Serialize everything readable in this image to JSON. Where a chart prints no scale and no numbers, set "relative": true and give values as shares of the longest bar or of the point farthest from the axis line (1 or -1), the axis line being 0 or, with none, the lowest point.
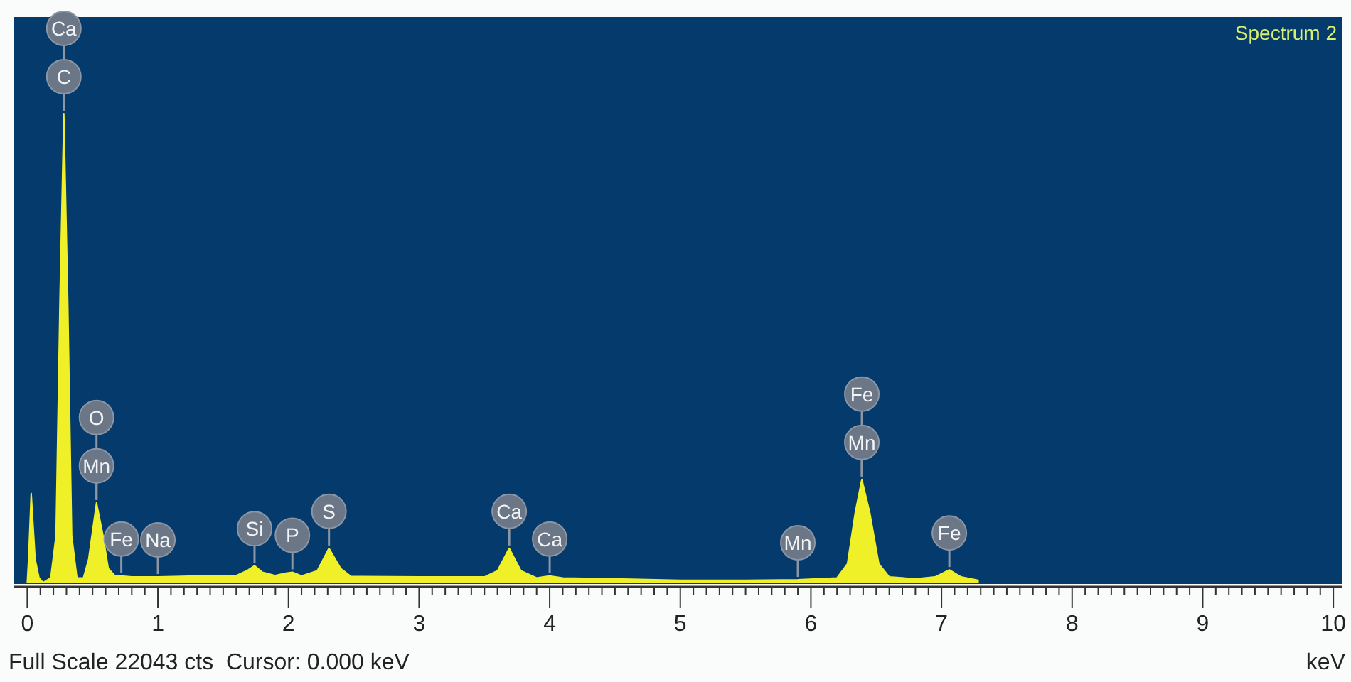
{
  "chart_data": {
    "type": "area",
    "title": "Spectrum 2",
    "xlabel": "keV",
    "relative": true,
    "xlim": [
      -0.1,
      10.07
    ],
    "xticks": [
      0,
      {
        "value": 0.1,
        "label": null
      },
      {
        "value": 0.2,
        "label": null
      },
      {
        "value": 0.3,
        "label": null
      },
      {
        "value": 0.4,
        "label": null
      },
      {
        "value": 0.5,
        "label": null
      },
      {
        "value": 0.6,
        "label": null
      },
      {
        "value": 0.7,
        "label": null
      },
      {
        "value": 0.8,
        "label": null
      },
      {
        "value": 0.9,
        "label": null
      },
      1,
      {
        "value": 1.1,
        "label": null
      },
      {
        "value": 1.2,
        "label": null
      },
      {
        "value": 1.3,
        "label": null
      },
      {
        "value": 1.4,
        "label": null
      },
      {
        "value": 1.5,
        "label": null
      },
      {
        "value": 1.6,
        "label": null
      },
      {
        "value": 1.7,
        "label": null
      },
      {
        "value": 1.8,
        "label": null
      },
      {
        "value": 1.9,
        "label": null
      },
      2,
      {
        "value": 2.1,
        "label": null
      },
      {
        "value": 2.2,
        "label": null
      },
      {
        "value": 2.3,
        "label": null
      },
      {
        "value": 2.4,
        "label": null
      },
      {
        "value": 2.5,
        "label": null
      },
      {
        "value": 2.6,
        "label": null
      },
      {
        "value": 2.7,
        "label": null
      },
      {
        "value": 2.8,
        "label": null
      },
      {
        "value": 2.9,
        "label": null
      },
      3,
      {
        "value": 3.1,
        "label": null
      },
      {
        "value": 3.2,
        "label": null
      },
      {
        "value": 3.3,
        "label": null
      },
      {
        "value": 3.4,
        "label": null
      },
      {
        "value": 3.5,
        "label": null
      },
      {
        "value": 3.6,
        "label": null
      },
      {
        "value": 3.7,
        "label": null
      },
      {
        "value": 3.8,
        "label": null
      },
      {
        "value": 3.9,
        "label": null
      },
      4,
      {
        "value": 4.1,
        "label": null
      },
      {
        "value": 4.2,
        "label": null
      },
      {
        "value": 4.3,
        "label": null
      },
      {
        "value": 4.4,
        "label": null
      },
      {
        "value": 4.5,
        "label": null
      },
      {
        "value": 4.6,
        "label": null
      },
      {
        "value": 4.7,
        "label": null
      },
      {
        "value": 4.8,
        "label": null
      },
      {
        "value": 4.9,
        "label": null
      },
      5,
      {
        "value": 5.1,
        "label": null
      },
      {
        "value": 5.2,
        "label": null
      },
      {
        "value": 5.3,
        "label": null
      },
      {
        "value": 5.4,
        "label": null
      },
      {
        "value": 5.5,
        "label": null
      },
      {
        "value": 5.6,
        "label": null
      },
      {
        "value": 5.7,
        "label": null
      },
      {
        "value": 5.8,
        "label": null
      },
      {
        "value": 5.9,
        "label": null
      },
      6,
      {
        "value": 6.1,
        "label": null
      },
      {
        "value": 6.2,
        "label": null
      },
      {
        "value": 6.3,
        "label": null
      },
      {
        "value": 6.4,
        "label": null
      },
      {
        "value": 6.5,
        "label": null
      },
      {
        "value": 6.6,
        "label": null
      },
      {
        "value": 6.7,
        "label": null
      },
      {
        "value": 6.8,
        "label": null
      },
      {
        "value": 6.9,
        "label": null
      },
      7,
      {
        "value": 7.1,
        "label": null
      },
      {
        "value": 7.2,
        "label": null
      },
      {
        "value": 7.3,
        "label": null
      },
      {
        "value": 7.4,
        "label": null
      },
      {
        "value": 7.5,
        "label": null
      },
      {
        "value": 7.6,
        "label": null
      },
      {
        "value": 7.7,
        "label": null
      },
      {
        "value": 7.8,
        "label": null
      },
      {
        "value": 7.9,
        "label": null
      },
      8,
      {
        "value": 8.1,
        "label": null
      },
      {
        "value": 8.2,
        "label": null
      },
      {
        "value": 8.3,
        "label": null
      },
      {
        "value": 8.4,
        "label": null
      },
      {
        "value": 8.5,
        "label": null
      },
      {
        "value": 8.6,
        "label": null
      },
      {
        "value": 8.7,
        "label": null
      },
      {
        "value": 8.8,
        "label": null
      },
      {
        "value": 8.9,
        "label": null
      },
      9,
      {
        "value": 9.1,
        "label": null
      },
      {
        "value": 9.2,
        "label": null
      },
      {
        "value": 9.3,
        "label": null
      },
      {
        "value": 9.4,
        "label": null
      },
      {
        "value": 9.5,
        "label": null
      },
      {
        "value": 9.6,
        "label": null
      },
      {
        "value": 9.7,
        "label": null
      },
      {
        "value": 9.8,
        "label": null
      },
      {
        "value": 9.9,
        "label": null
      },
      10
    ],
    "series": [
      {
        "color": "#f0f028",
        "x": [
          0,
          0.01,
          0.03,
          0.06,
          0.09,
          0.12,
          0.18,
          0.22,
          0.25,
          0.28,
          0.31,
          0.34,
          0.38,
          0.43,
          0.47,
          0.53,
          0.58,
          0.62,
          0.67,
          0.8,
          1.0,
          1.3,
          1.6,
          1.68,
          1.74,
          1.8,
          1.9,
          1.98,
          2.03,
          2.1,
          2.22,
          2.31,
          2.4,
          2.48,
          3.0,
          3.5,
          3.6,
          3.69,
          3.78,
          3.9,
          4.0,
          4.1,
          4.5,
          5.0,
          5.5,
          5.9,
          6.2,
          6.28,
          6.34,
          6.39,
          6.45,
          6.52,
          6.6,
          6.8,
          6.95,
          7.06,
          7.15,
          7.28
        ],
        "values": [
          0,
          0.05,
          0.19,
          0.05,
          0.01,
          0,
          0.01,
          0.1,
          0.6,
          1,
          0.6,
          0.1,
          0.01,
          0.01,
          0.05,
          0.17,
          0.1,
          0.03,
          0.015,
          0.012,
          0.012,
          0.014,
          0.015,
          0.025,
          0.036,
          0.022,
          0.015,
          0.02,
          0.022,
          0.014,
          0.025,
          0.073,
          0.03,
          0.013,
          0.012,
          0.012,
          0.025,
          0.073,
          0.025,
          0.01,
          0.014,
          0.01,
          0.008,
          0.005,
          0.005,
          0.006,
          0.01,
          0.04,
          0.15,
          0.22,
          0.15,
          0.04,
          0.012,
          0.008,
          0.012,
          0.027,
          0.012,
          0.005
        ]
      }
    ],
    "annotations": [
      {
        "text": "Ca",
        "x": 0.28,
        "y": 1
      },
      {
        "text": "C",
        "x": 0.28,
        "y": 1
      },
      {
        "text": "O",
        "x": 0.53,
        "y": 0.17
      },
      {
        "text": "Mn",
        "x": 0.53,
        "y": 0.17
      },
      {
        "text": "Fe",
        "x": 0.72,
        "y": 0.014
      },
      {
        "text": "Na",
        "x": 1.0,
        "y": 0.012
      },
      {
        "text": "Si",
        "x": 1.74,
        "y": 0.036
      },
      {
        "text": "P",
        "x": 2.03,
        "y": 0.022
      },
      {
        "text": "S",
        "x": 2.31,
        "y": 0.073
      },
      {
        "text": "Ca",
        "x": 3.69,
        "y": 0.073
      },
      {
        "text": "Ca",
        "x": 4.0,
        "y": 0.014
      },
      {
        "text": "Mn",
        "x": 5.9,
        "y": 0.006
      },
      {
        "text": "Fe",
        "x": 6.39,
        "y": 0.22
      },
      {
        "text": "Mn",
        "x": 6.39,
        "y": 0.22
      },
      {
        "text": "Fe",
        "x": 7.06,
        "y": 0.027
      },
      "Full Scale 22043 cts  Cursor: 0.000 keV"
    ]
  }
}
